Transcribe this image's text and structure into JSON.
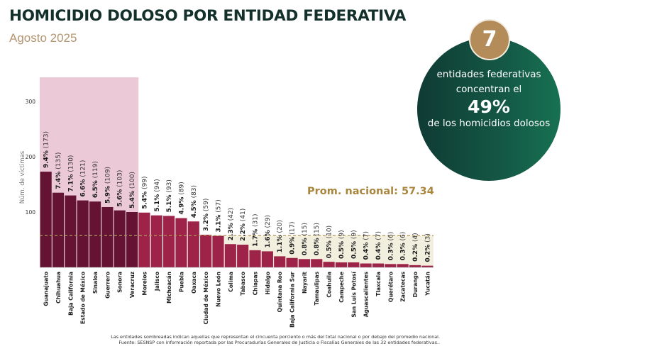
{
  "header": {
    "title": "HOMICIDIO DOLOSO POR ENTIDAD FEDERATIVA",
    "subtitle": "Agosto 2025"
  },
  "highlight": {
    "count": "7",
    "line1": "entidades federativas",
    "line2": "concentran el",
    "percent": "49%",
    "line3": "de los homicidios dolosos"
  },
  "footer": {
    "note": "Las entidades sombreadas indican aquellas que representan el cincuenta porciento o más del total nacional o por debajo del promedio nacional.",
    "source": "Fuente: SESNSP con información reportada por las Procuradurías Generales de Justicia o Fiscalías Generales de las 32 entidades federativas.."
  },
  "colors": {
    "dark_bar": "#641333",
    "light_bar": "#9e2349",
    "pink_band": "#ecc9d7",
    "beige_band": "#f2efdf",
    "avg_line": "#b3965a",
    "avg_text": "#a8863e"
  },
  "chart_data": {
    "type": "bar",
    "title": "HOMICIDIO DOLOSO POR ENTIDAD FEDERATIVA",
    "subtitle": "Agosto 2025",
    "xlabel": "",
    "ylabel": "Núm. de víctimas",
    "ylim": [
      0,
      350
    ],
    "yticks": [
      100,
      200,
      300
    ],
    "grid": false,
    "average": 57.34,
    "average_label": "Prom. nacional: 57.34",
    "top_group_count": 8,
    "categories": [
      "Guanajuato",
      "Chihuahua",
      "Baja California",
      "Estado de México",
      "Sinaloa",
      "Guerrero",
      "Sonora",
      "Veracruz",
      "Morelos",
      "Jalisco",
      "Michoacán",
      "Puebla",
      "Oaxaca",
      "Ciudad de México",
      "Nuevo León",
      "Colima",
      "Tabasco",
      "Chiapas",
      "Hidalgo",
      "Quintana Roo",
      "Baja California Sur",
      "Nayarit",
      "Tamaulipas",
      "Coahuila",
      "Campeche",
      "San Luis Potosí",
      "Aguascalientes",
      "Tlaxcala",
      "Querétaro",
      "Zacatecas",
      "Durango",
      "Yucatán"
    ],
    "values": [
      173,
      135,
      130,
      121,
      119,
      109,
      103,
      100,
      99,
      94,
      93,
      89,
      83,
      59,
      57,
      42,
      41,
      31,
      29,
      20,
      17,
      15,
      15,
      10,
      9,
      9,
      7,
      7,
      6,
      6,
      4,
      3
    ],
    "percent_labels": [
      "9.4%",
      "7.4%",
      "7.1%",
      "6.6%",
      "6.5%",
      "5.9%",
      "5.6%",
      "5.4%",
      "5.4%",
      "5.1%",
      "5.1%",
      "4.9%",
      "4.5%",
      "3.2%",
      "3.1%",
      "2.3%",
      "2.2%",
      "1.7%",
      "1.6%",
      "1.1%",
      "0.9%",
      "0.8%",
      "0.8%",
      "0.5%",
      "0.5%",
      "0.5%",
      "0.4%",
      "0.4%",
      "0.3%",
      "0.3%",
      "0.2%",
      "0.2%"
    ],
    "count_labels": [
      "(173)",
      "(135)",
      "(130)",
      "(121)",
      "(119)",
      "(109)",
      "(103)",
      "(100)",
      "(99)",
      "(94)",
      "(93)",
      "(89)",
      "(83)",
      "(59)",
      "(57)",
      "(42)",
      "(41)",
      "(31)",
      "(29)",
      "(20)",
      "(17)",
      "(15)",
      "(15)",
      "(10)",
      "(9)",
      "(9)",
      "(7)",
      "(7)",
      "(6)",
      "(6)",
      "(4)",
      "(3)"
    ]
  }
}
